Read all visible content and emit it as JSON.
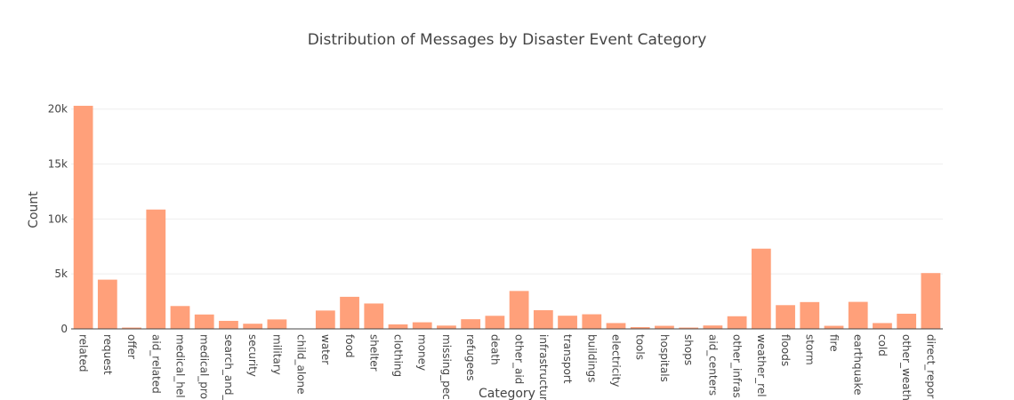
{
  "chart_data": {
    "type": "bar",
    "title": "Distribution of Messages by Disaster Event Category",
    "xlabel": "Category",
    "ylabel": "Count",
    "ylim": [
      0,
      22000
    ],
    "yticks": [
      {
        "value": 0,
        "label": "0"
      },
      {
        "value": 5000,
        "label": "5k"
      },
      {
        "value": 10000,
        "label": "10k"
      },
      {
        "value": 15000,
        "label": "15k"
      },
      {
        "value": 20000,
        "label": "20k"
      }
    ],
    "grid": true,
    "bar_color": "#FFA07A",
    "categories": [
      "related",
      "request",
      "offer",
      "aid_related",
      "medical_hel",
      "medical_pro",
      "search_and_",
      "security",
      "military",
      "child_alone",
      "water",
      "food",
      "shelter",
      "clothing",
      "money",
      "missing_pec",
      "refugees",
      "death",
      "other_aid",
      "infrastructur",
      "transport",
      "buildings",
      "electricity",
      "tools",
      "hospitals",
      "shops",
      "aid_centers",
      "other_infras",
      "weather_rel",
      "floods",
      "storm",
      "fire",
      "earthquake",
      "cold",
      "other_weath",
      "direct_repor"
    ],
    "values": [
      20300,
      4480,
      120,
      10860,
      2080,
      1310,
      730,
      470,
      860,
      0,
      1670,
      2920,
      2310,
      410,
      600,
      300,
      880,
      1190,
      3450,
      1700,
      1200,
      1330,
      530,
      160,
      280,
      120,
      310,
      1150,
      7300,
      2160,
      2440,
      280,
      2460,
      530,
      1380,
      5080
    ]
  }
}
